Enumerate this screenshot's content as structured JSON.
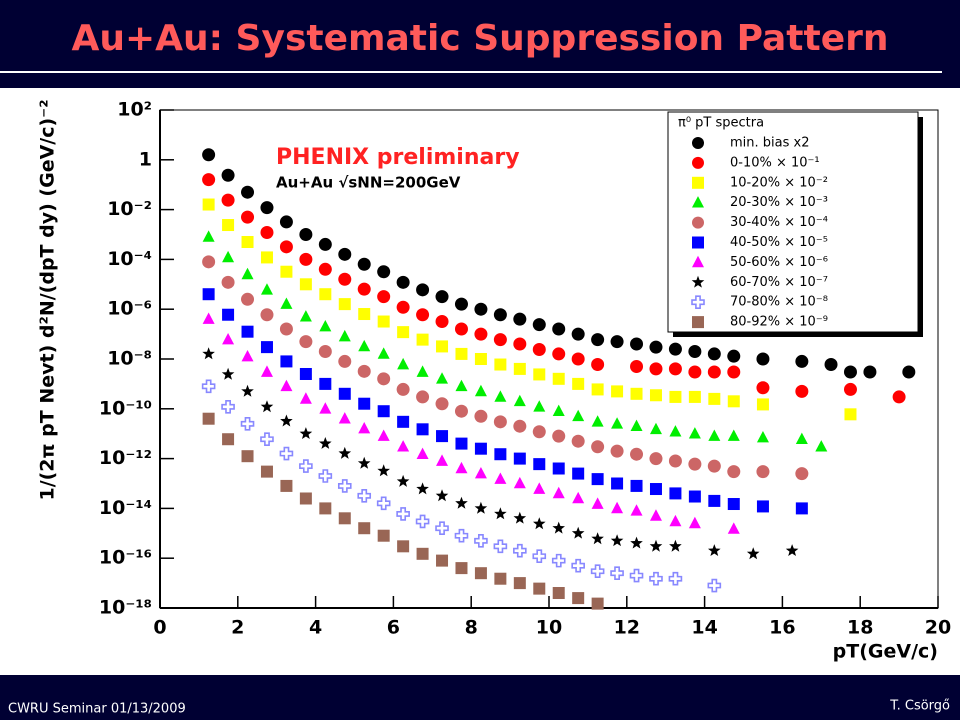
{
  "slide": {
    "title": "Au+Au: Systematic Suppression Pattern",
    "footer_left": "CWRU Seminar 01/13/2009",
    "footer_right": "T. Csörgő"
  },
  "chart_data": {
    "type": "scatter",
    "xlabel": "pT(GeV/c)",
    "ylabel": "1/(2π pT Nevt) d²N/(dpT dy) (GeV/c)⁻²",
    "annotations": [
      "PHENIX preliminary",
      "Au+Au √sNN=200GeV"
    ],
    "legend_title": "π⁰ pT spectra",
    "legend": "upper right",
    "log_y": true,
    "xlim": [
      0,
      20
    ],
    "xticks": [
      0,
      2,
      4,
      6,
      8,
      10,
      12,
      14,
      16,
      18,
      20
    ],
    "ylim": [
      1e-18,
      100
    ],
    "yticks": [
      {
        "value": 100,
        "label": "10²"
      },
      1,
      {
        "value": 0.01,
        "label": "10⁻²"
      },
      {
        "value": 0.0001,
        "label": "10⁻⁴"
      },
      {
        "value": 1e-06,
        "label": "10⁻⁶"
      },
      {
        "value": 1e-08,
        "label": "10⁻⁸"
      },
      {
        "value": 1e-10,
        "label": "10⁻¹⁰"
      },
      {
        "value": 1e-12,
        "label": "10⁻¹²"
      },
      {
        "value": 1e-14,
        "label": "10⁻¹⁴"
      },
      {
        "value": 1e-16,
        "label": "10⁻¹⁶"
      },
      {
        "value": 1e-18,
        "label": "10⁻¹⁸"
      }
    ],
    "series": [
      {
        "name": "min. bias x2",
        "color": "#000000",
        "marker": "circle",
        "x": [
          1.25,
          1.75,
          2.25,
          2.75,
          3.25,
          3.75,
          4.25,
          4.75,
          5.25,
          5.75,
          6.25,
          6.75,
          7.25,
          7.75,
          8.25,
          8.75,
          9.25,
          9.75,
          10.25,
          10.75,
          11.25,
          11.75,
          12.25,
          12.75,
          13.25,
          13.75,
          14.25,
          14.75,
          15.5,
          16.5,
          17.25,
          17.75,
          18.25,
          19.25
        ],
        "values": [
          1.6,
          0.24,
          0.05,
          0.012,
          0.0032,
          0.001,
          0.0004,
          0.00016,
          6.4e-05,
          3.2e-05,
          1.2e-05,
          6e-06,
          3.2e-06,
          1.6e-06,
          1e-06,
          6e-07,
          4e-07,
          2.4e-07,
          1.6e-07,
          1e-07,
          6e-08,
          5e-08,
          4e-08,
          3e-08,
          2.5e-08,
          2e-08,
          1.6e-08,
          1.3e-08,
          1e-08,
          8e-09,
          6e-09,
          3e-09,
          3e-09,
          3e-09
        ]
      },
      {
        "name": "0-10% × 10⁻¹",
        "color": "#ff0000",
        "marker": "circle",
        "x": [
          1.25,
          1.75,
          2.25,
          2.75,
          3.25,
          3.75,
          4.25,
          4.75,
          5.25,
          5.75,
          6.25,
          6.75,
          7.25,
          7.75,
          8.25,
          8.75,
          9.25,
          9.75,
          10.25,
          10.75,
          11.25,
          12.25,
          12.75,
          13.25,
          13.75,
          14.25,
          14.75,
          15.5,
          16.5,
          17.75,
          19
        ],
        "values": [
          0.16,
          0.024,
          0.005,
          0.0012,
          0.00032,
          0.0001,
          4e-05,
          1.6e-05,
          6.4e-06,
          3.2e-06,
          1.2e-06,
          6e-07,
          3.2e-07,
          1.6e-07,
          1e-07,
          6e-08,
          4e-08,
          2.4e-08,
          1.6e-08,
          1e-08,
          6e-09,
          5e-09,
          4e-09,
          4e-09,
          3e-09,
          3e-09,
          3e-09,
          7e-10,
          5e-10,
          6e-10,
          3e-10
        ]
      },
      {
        "name": "10-20% × 10⁻²",
        "color": "#ffff00",
        "marker": "square",
        "x": [
          1.25,
          1.75,
          2.25,
          2.75,
          3.25,
          3.75,
          4.25,
          4.75,
          5.25,
          5.75,
          6.25,
          6.75,
          7.25,
          7.75,
          8.25,
          8.75,
          9.25,
          9.75,
          10.25,
          10.75,
          11.25,
          11.75,
          12.25,
          12.75,
          13.25,
          13.75,
          14.25,
          14.75,
          15.5,
          17.75
        ],
        "values": [
          0.016,
          0.0024,
          0.0005,
          0.00012,
          3.2e-05,
          1e-05,
          4e-06,
          1.6e-06,
          6.4e-07,
          3.2e-07,
          1.2e-07,
          6e-08,
          3.2e-08,
          1.6e-08,
          1e-08,
          6e-09,
          4e-09,
          2.4e-09,
          1.6e-09,
          1e-09,
          6e-10,
          5e-10,
          4e-10,
          3.5e-10,
          3e-10,
          3e-10,
          2.5e-10,
          2e-10,
          1.5e-10,
          6e-11
        ]
      },
      {
        "name": "20-30% × 10⁻³",
        "color": "#00ee00",
        "marker": "triangle",
        "x": [
          1.25,
          1.75,
          2.25,
          2.75,
          3.25,
          3.75,
          4.25,
          4.75,
          5.25,
          5.75,
          6.25,
          6.75,
          7.25,
          7.75,
          8.25,
          8.75,
          9.25,
          9.75,
          10.25,
          10.75,
          11.25,
          11.75,
          12.25,
          12.75,
          13.25,
          13.75,
          14.25,
          14.75,
          15.5,
          16.5,
          17
        ],
        "values": [
          0.0008,
          0.00012,
          2.5e-05,
          6e-06,
          1.6e-06,
          5e-07,
          2e-07,
          8e-08,
          3.2e-08,
          1.6e-08,
          6e-09,
          3e-09,
          1.6e-09,
          8e-10,
          5e-10,
          3e-10,
          2e-10,
          1.2e-10,
          8e-11,
          5e-11,
          3e-11,
          2.5e-11,
          2e-11,
          1.5e-11,
          1.2e-11,
          1e-11,
          8e-12,
          8e-12,
          7e-12,
          6e-12,
          3e-12
        ]
      },
      {
        "name": "30-40% × 10⁻⁴",
        "color": "#cc6666",
        "marker": "circle",
        "x": [
          1.25,
          1.75,
          2.25,
          2.75,
          3.25,
          3.75,
          4.25,
          4.75,
          5.25,
          5.75,
          6.25,
          6.75,
          7.25,
          7.75,
          8.25,
          8.75,
          9.25,
          9.75,
          10.25,
          10.75,
          11.25,
          11.75,
          12.25,
          12.75,
          13.25,
          13.75,
          14.25,
          14.75,
          15.5,
          16.5
        ],
        "values": [
          8e-05,
          1.2e-05,
          2.5e-06,
          6e-07,
          1.6e-07,
          5e-08,
          2e-08,
          8e-09,
          3.2e-09,
          1.6e-09,
          6e-10,
          3e-10,
          1.6e-10,
          8e-11,
          5e-11,
          3e-11,
          2e-11,
          1.2e-11,
          8e-12,
          5e-12,
          3e-12,
          2e-12,
          1.5e-12,
          1e-12,
          8e-13,
          6e-13,
          5e-13,
          3e-13,
          3e-13,
          2.5e-13
        ]
      },
      {
        "name": "40-50% × 10⁻⁵",
        "color": "#0000ff",
        "marker": "square",
        "x": [
          1.25,
          1.75,
          2.25,
          2.75,
          3.25,
          3.75,
          4.25,
          4.75,
          5.25,
          5.75,
          6.25,
          6.75,
          7.25,
          7.75,
          8.25,
          8.75,
          9.25,
          9.75,
          10.25,
          10.75,
          11.25,
          11.75,
          12.25,
          12.75,
          13.25,
          13.75,
          14.25,
          14.75,
          15.5,
          16.5
        ],
        "values": [
          4e-06,
          6e-07,
          1.25e-07,
          3e-08,
          8e-09,
          2.5e-09,
          1e-09,
          4e-10,
          1.6e-10,
          8e-11,
          3e-11,
          1.5e-11,
          8e-12,
          4e-12,
          2.5e-12,
          1.5e-12,
          1e-12,
          6e-13,
          4e-13,
          2.5e-13,
          1.5e-13,
          1e-13,
          8e-14,
          6e-14,
          4e-14,
          3e-14,
          2e-14,
          1.5e-14,
          1.2e-14,
          1e-14
        ]
      },
      {
        "name": "50-60% × 10⁻⁶",
        "color": "#ff00ff",
        "marker": "triangle",
        "x": [
          1.25,
          1.75,
          2.25,
          2.75,
          3.25,
          3.75,
          4.25,
          4.75,
          5.25,
          5.75,
          6.25,
          6.75,
          7.25,
          7.75,
          8.25,
          8.75,
          9.25,
          9.75,
          10.25,
          10.75,
          11.25,
          11.75,
          12.25,
          12.75,
          13.25,
          13.75,
          14.75
        ],
        "values": [
          4e-07,
          6e-08,
          1.25e-08,
          3e-09,
          8e-10,
          2.5e-10,
          1e-10,
          4e-11,
          1.6e-11,
          8e-12,
          3e-12,
          1.5e-12,
          8e-13,
          4e-13,
          2.5e-13,
          1.5e-13,
          1e-13,
          6e-14,
          4e-14,
          2.5e-14,
          1.5e-14,
          1e-14,
          8e-15,
          5e-15,
          3e-15,
          2.5e-15,
          1.5e-15
        ]
      },
      {
        "name": "60-70% × 10⁻⁷",
        "color": "#000000",
        "marker": "star",
        "x": [
          1.25,
          1.75,
          2.25,
          2.75,
          3.25,
          3.75,
          4.25,
          4.75,
          5.25,
          5.75,
          6.25,
          6.75,
          7.25,
          7.75,
          8.25,
          8.75,
          9.25,
          9.75,
          10.25,
          10.75,
          11.25,
          11.75,
          12.25,
          12.75,
          13.25,
          14.25,
          15.25,
          16.25
        ],
        "values": [
          1.6e-08,
          2.4e-09,
          5e-10,
          1.2e-10,
          3.2e-11,
          1e-11,
          4e-12,
          1.6e-12,
          6.4e-13,
          3.2e-13,
          1.2e-13,
          6e-14,
          3.2e-14,
          1.6e-14,
          1e-14,
          6e-15,
          4e-15,
          2.4e-15,
          1.6e-15,
          1e-15,
          6e-16,
          5e-16,
          4e-16,
          3e-16,
          3e-16,
          2e-16,
          1.5e-16,
          2e-16
        ]
      },
      {
        "name": "70-80% × 10⁻⁸",
        "color": "#8888ff",
        "marker": "cross",
        "x": [
          1.25,
          1.75,
          2.25,
          2.75,
          3.25,
          3.75,
          4.25,
          4.75,
          5.25,
          5.75,
          6.25,
          6.75,
          7.25,
          7.75,
          8.25,
          8.75,
          9.25,
          9.75,
          10.25,
          10.75,
          11.25,
          11.75,
          12.25,
          12.75,
          13.25,
          14.25
        ],
        "values": [
          8e-10,
          1.2e-10,
          2.5e-11,
          6e-12,
          1.6e-12,
          5e-13,
          2e-13,
          8e-14,
          3.2e-14,
          1.6e-14,
          6e-15,
          3e-15,
          1.6e-15,
          8e-16,
          5e-16,
          3e-16,
          2e-16,
          1.2e-16,
          8e-17,
          5e-17,
          3e-17,
          2.5e-17,
          2e-17,
          1.5e-17,
          1.5e-17,
          8e-18
        ]
      },
      {
        "name": "80-92% × 10⁻⁹",
        "color": "#996655",
        "marker": "square",
        "x": [
          1.25,
          1.75,
          2.25,
          2.75,
          3.25,
          3.75,
          4.25,
          4.75,
          5.25,
          5.75,
          6.25,
          6.75,
          7.25,
          7.75,
          8.25,
          8.75,
          9.25,
          9.75,
          10.25,
          10.75,
          11.25
        ],
        "values": [
          4e-11,
          6e-12,
          1.25e-12,
          3e-13,
          8e-14,
          2.5e-14,
          1e-14,
          4e-15,
          1.6e-15,
          8e-16,
          3e-16,
          1.5e-16,
          8e-17,
          4e-17,
          2.5e-17,
          1.5e-17,
          1e-17,
          6e-18,
          4e-18,
          2.5e-18,
          1.5e-18
        ]
      }
    ]
  }
}
